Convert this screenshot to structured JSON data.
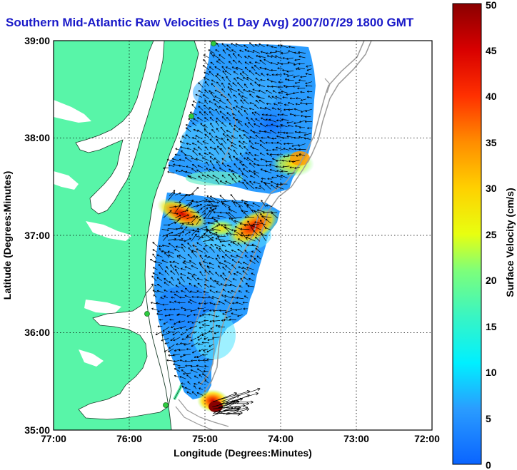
{
  "title": "Southern Mid-Atlantic Raw Velocities (1 Day Avg) 2007/07/29 1800 GMT",
  "x_axis": {
    "label": "Longitude (Degrees:Minutes)",
    "ticks": [
      "77:00",
      "76:00",
      "75:00",
      "74:00",
      "73:00",
      "72:00"
    ]
  },
  "y_axis": {
    "label": "Latitude (Degrees:Minutes)",
    "ticks": [
      "39:00",
      "38:00",
      "37:00",
      "36:00",
      "35:00"
    ]
  },
  "colorbar": {
    "label": "Surface Velocity (cm/s)",
    "min": 0,
    "max": 50,
    "ticks": [
      "0",
      "5",
      "10",
      "15",
      "20",
      "25",
      "30",
      "35",
      "40",
      "45",
      "50"
    ]
  },
  "colors": {
    "land": "#58f5a8",
    "title": "#1919c8",
    "station": "#2ecc40"
  }
}
